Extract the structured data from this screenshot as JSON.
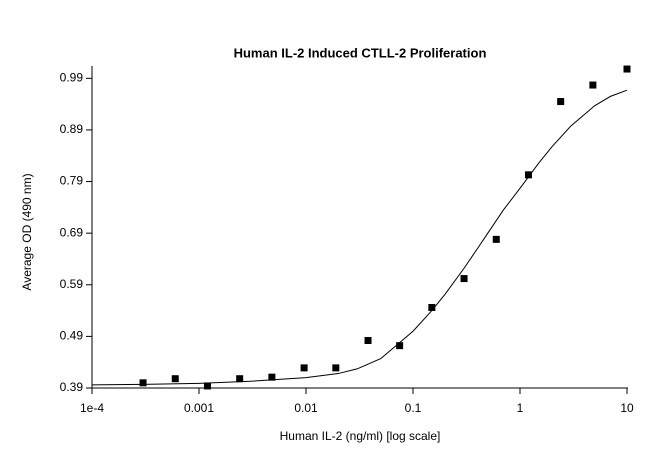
{
  "chart_data": {
    "type": "scatter",
    "title": "Human IL-2 Induced CTLL-2 Proliferation",
    "x_label": "Human IL-2 (ng/ml) [log scale]",
    "y_label": "Average OD (490 nm)",
    "x_scale": "log",
    "xlim": [
      0.0001,
      10
    ],
    "xticks": [
      {
        "value": 0.0001,
        "label": "1e-4"
      },
      0.001,
      0.01,
      0.1,
      1,
      10
    ],
    "ylim": [
      0.39,
      1.01
    ],
    "yticks": [
      0.39,
      0.49,
      0.59,
      0.69,
      0.79,
      0.89,
      0.99
    ],
    "series": [
      {
        "type": "scatter",
        "color": "#000000",
        "x": [
          0.0003,
          0.0006,
          0.0012,
          0.0024,
          0.0048,
          0.0096,
          0.019,
          0.038,
          0.075,
          0.15,
          0.3,
          0.6,
          1.2,
          2.4,
          4.8,
          10
        ],
        "values": [
          0.4,
          0.408,
          0.394,
          0.408,
          0.411,
          0.429,
          0.429,
          0.482,
          0.472,
          0.546,
          0.602,
          0.678,
          0.803,
          0.945,
          0.977,
          1.008
        ]
      },
      {
        "type": "line",
        "color": "#000000",
        "x": [
          0.0001,
          0.0003,
          0.001,
          0.003,
          0.01,
          0.02,
          0.03,
          0.05,
          0.1,
          0.15,
          0.2,
          0.3,
          0.4,
          0.5,
          0.7,
          1,
          1.5,
          2,
          3,
          5,
          7,
          10
        ],
        "values": [
          0.396,
          0.397,
          0.399,
          0.403,
          0.41,
          0.418,
          0.427,
          0.447,
          0.5,
          0.54,
          0.572,
          0.622,
          0.66,
          0.69,
          0.735,
          0.777,
          0.826,
          0.858,
          0.898,
          0.937,
          0.955,
          0.967
        ]
      }
    ]
  }
}
